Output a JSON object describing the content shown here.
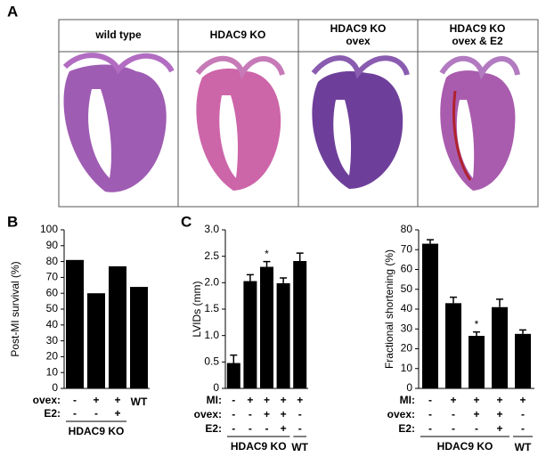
{
  "panel_a": {
    "panel_label": "A",
    "columns": [
      {
        "lines": [
          "wild type"
        ]
      },
      {
        "lines": [
          "HDAC9 KO"
        ]
      },
      {
        "lines": [
          "HDAC9 KO",
          "ovex"
        ]
      },
      {
        "lines": [
          "HDAC9 KO",
          "ovex & E2"
        ]
      }
    ]
  },
  "chart_data": [
    {
      "type": "bar",
      "panel_label": "B",
      "y_label": "Post-MI survival (%)",
      "color": "#000000",
      "ylim": [
        0,
        100
      ],
      "yticks": [
        0,
        10,
        20,
        30,
        40,
        50,
        60,
        70,
        80,
        90,
        100
      ],
      "values": [
        81,
        60,
        77,
        64
      ],
      "categories": [
        null,
        null,
        null,
        "WT"
      ],
      "conditions": [
        {
          "label": "ovex:",
          "values": [
            "-",
            "+",
            "+",
            null
          ]
        },
        {
          "label": "E2:",
          "values": [
            "-",
            "-",
            "+",
            null
          ]
        }
      ],
      "group_label": "HDAC9 KO"
    },
    {
      "type": "bar",
      "panel_label": "C",
      "y_label": "LVIDs (mm)",
      "color": "#000000",
      "ylim": [
        0,
        3
      ],
      "yticks": [
        0,
        0.5,
        {
          "value": 1,
          "label": "1.0"
        },
        1.5,
        {
          "value": 2,
          "label": "2.0"
        },
        2.5,
        {
          "value": 3,
          "label": "3.0"
        }
      ],
      "values": [
        0.48,
        2.03,
        2.3,
        1.99,
        2.41
      ],
      "errors": [
        0.15,
        0.12,
        0.1,
        0.1,
        0.15
      ],
      "value_annotations": [
        null,
        null,
        "*",
        null,
        null
      ],
      "categories": [
        null,
        null,
        null,
        null,
        "WT"
      ],
      "conditions": [
        {
          "label": "MI:",
          "values": [
            "-",
            "+",
            "+",
            "+",
            "+"
          ]
        },
        {
          "label": "ovex:",
          "values": [
            "-",
            "-",
            "+",
            "+",
            "-"
          ]
        },
        {
          "label": "E2:",
          "values": [
            "-",
            "-",
            "-",
            "+",
            "-"
          ]
        }
      ],
      "group_label": "HDAC9 KO"
    },
    {
      "type": "bar",
      "y_label": "Fractional shortening (%)",
      "color": "#000000",
      "ylim": [
        0,
        80
      ],
      "yticks": [
        0,
        10,
        20,
        30,
        40,
        50,
        60,
        70,
        80
      ],
      "values": [
        73,
        43,
        26.5,
        41,
        27.5
      ],
      "errors": [
        2,
        3,
        2,
        4,
        2
      ],
      "value_annotations": [
        null,
        null,
        "*",
        null,
        null
      ],
      "categories": [
        null,
        null,
        null,
        null,
        "WT"
      ],
      "conditions": [
        {
          "label": "MI:",
          "values": [
            "-",
            "+",
            "+",
            "+",
            "+"
          ]
        },
        {
          "label": "ovex:",
          "values": [
            "-",
            "-",
            "+",
            "+",
            "-"
          ]
        },
        {
          "label": "E2:",
          "values": [
            "-",
            "-",
            "-",
            "+",
            "-"
          ]
        }
      ],
      "group_label": "HDAC9 KO"
    }
  ]
}
